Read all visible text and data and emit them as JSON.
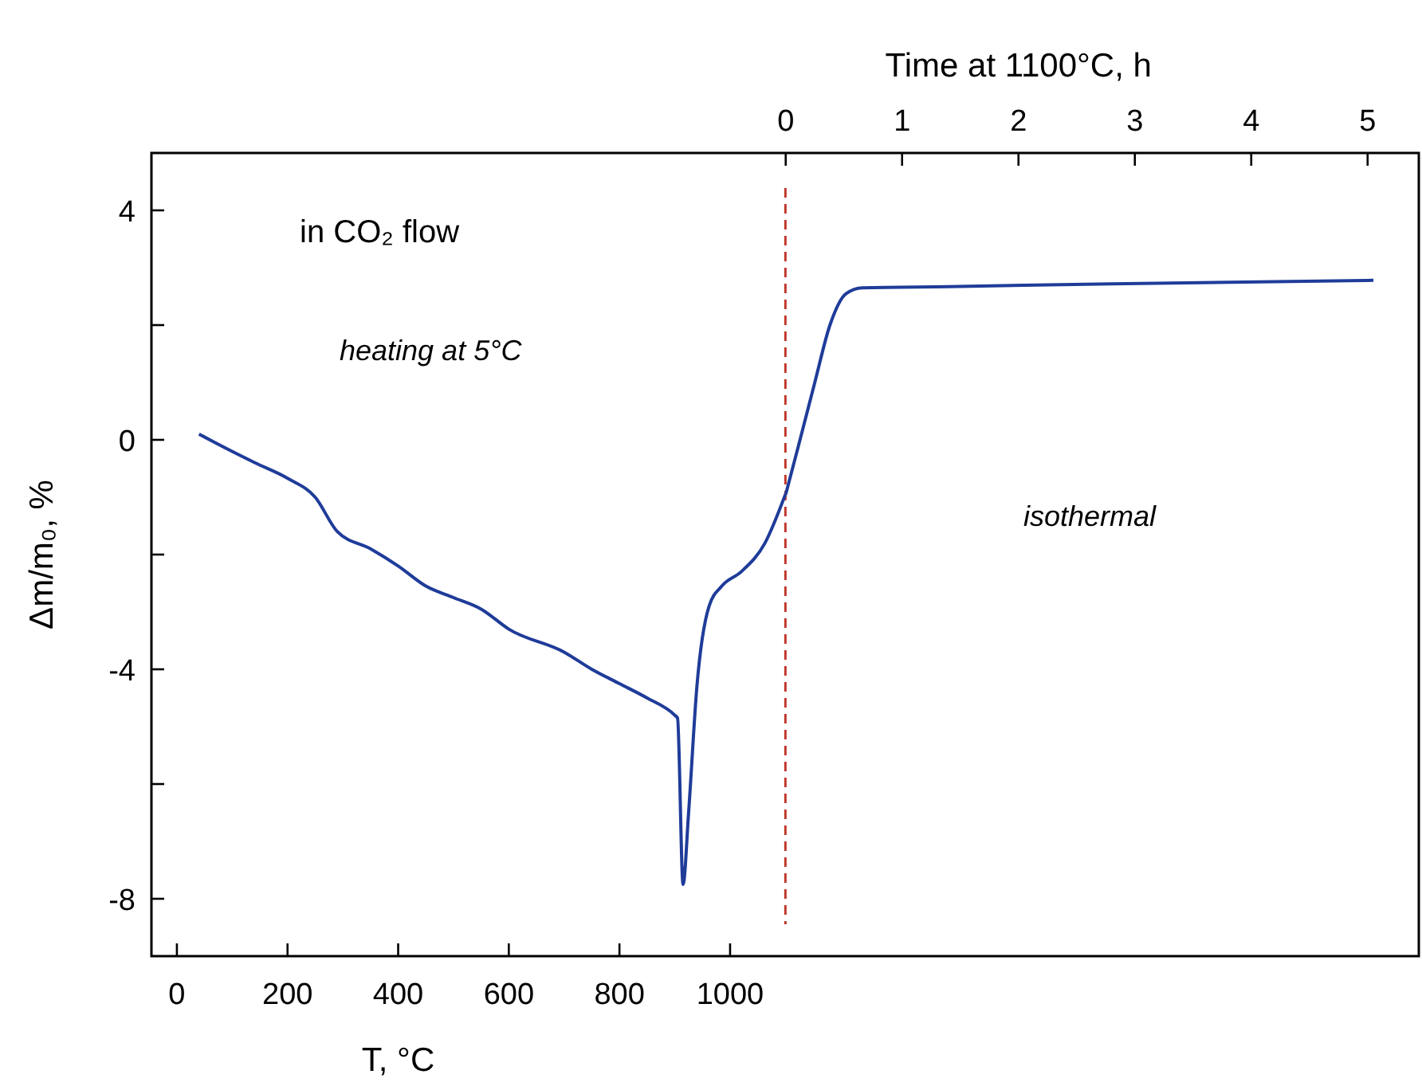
{
  "chart_data": {
    "type": "line",
    "xlabel": "T, °C",
    "x2label": "Time at 1100°C, h",
    "ylabel": "Δm/m₀, %",
    "xlim": [
      -46,
      2245
    ],
    "xticks": [
      0,
      200,
      400,
      600,
      800,
      1000
    ],
    "x2lim": [
      -5.45,
      5.44
    ],
    "x2ticks": [
      0,
      1,
      2,
      3,
      4,
      5
    ],
    "ylim": [
      -9,
      5
    ],
    "yticks": [
      4,
      {
        "value": 2,
        "label": null
      },
      0,
      {
        "value": -2,
        "label": null
      },
      -4,
      {
        "value": -6,
        "label": null
      },
      -8
    ],
    "grid": false,
    "marker": "none",
    "line_style": "solid",
    "series": [
      {
        "color": "#1f3c99",
        "x": [
          40,
          69,
          141,
          200,
          250,
          290,
          350,
          400,
          450,
          500,
          550,
          600,
          700,
          750,
          800,
          850,
          900,
          905,
          915,
          925,
          940,
          962,
          985,
          1020,
          1063,
          1100
        ],
        "values": [
          0.1,
          -0.05,
          -0.4,
          -0.67,
          -1.0,
          -1.6,
          -1.9,
          -2.2,
          -2.55,
          -2.75,
          -2.95,
          -3.3,
          -3.7,
          -4.0,
          -4.25,
          -4.5,
          -4.8,
          -4.85,
          -7.75,
          -6.5,
          -4.3,
          -2.9,
          -2.55,
          -2.3,
          -1.8,
          -0.95
        ]
      },
      {
        "color": "#1f3c99",
        "axis": "x2",
        "x": [
          0,
          0.11,
          0.25,
          0.38,
          0.52,
          0.66,
          1.4,
          2.8,
          5.05
        ],
        "values": [
          -0.95,
          -0.1,
          1.0,
          2.0,
          2.55,
          2.65,
          2.67,
          2.72,
          2.78
        ]
      }
    ],
    "ref_lines": [
      {
        "axis": "x",
        "value": 1100,
        "color": "#c0392b",
        "line_style": "dashed"
      }
    ],
    "annotations": [
      "in CO₂ flow",
      "heating at 5°C",
      "isothermal"
    ]
  }
}
